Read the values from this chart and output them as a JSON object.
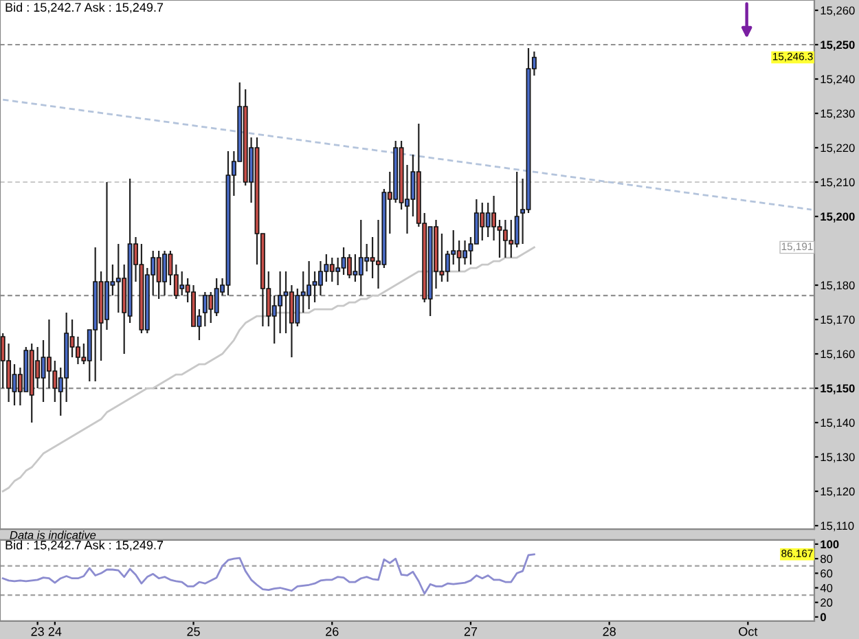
{
  "chart_data": [
    {
      "type": "candlestick",
      "title": "Bid : 15,242.7 Ask : 15,249.7",
      "categories": [
        null,
        null,
        null,
        null,
        null,
        null,
        null,
        null,
        null,
        null,
        null,
        null,
        null,
        null,
        null,
        null,
        null,
        null,
        null,
        null,
        null,
        null,
        null,
        null,
        null,
        null,
        null,
        null,
        null,
        null,
        null,
        null,
        null,
        null,
        null,
        null,
        null,
        null,
        null,
        null,
        null,
        null,
        null,
        null,
        null,
        null,
        null,
        null,
        null,
        null,
        null,
        null,
        null,
        null,
        null,
        null,
        null,
        null,
        null,
        null,
        null,
        null,
        null,
        null,
        null,
        null,
        null,
        null,
        null,
        null,
        null,
        null,
        null,
        null,
        null,
        null,
        null,
        null,
        null,
        null,
        null,
        null,
        null,
        null,
        null,
        null,
        null,
        null,
        null,
        null,
        null,
        null,
        null,
        null,
        null,
        null,
        null,
        null,
        null,
        null,
        null,
        null,
        null,
        null,
        null,
        null,
        null,
        null,
        null,
        null,
        null,
        null,
        null,
        null,
        null,
        null,
        null,
        null,
        null,
        null,
        null,
        null,
        null,
        null,
        null,
        null,
        null,
        null,
        null,
        null,
        null,
        null,
        null,
        null,
        null,
        null,
        null,
        null,
        null,
        null,
        null
      ],
      "ohlc": [
        [
          15165,
          15166,
          15150,
          15158
        ],
        [
          15158,
          15163,
          15146,
          15150
        ],
        [
          15149,
          15157,
          15145,
          15154
        ],
        [
          15154,
          15156,
          15145,
          15149
        ],
        [
          15149,
          15162,
          15149,
          15161
        ],
        [
          15161,
          15163,
          15140,
          15148
        ],
        [
          15158,
          15162,
          15150,
          15153
        ],
        [
          15153,
          15164,
          15146,
          15159
        ],
        [
          15159,
          15170,
          15150,
          15155
        ],
        [
          15155,
          15158,
          15146,
          15150
        ],
        [
          15149,
          15156,
          15142,
          15153
        ],
        [
          15153,
          15172,
          15146,
          15166
        ],
        [
          15165,
          15170,
          15159,
          15162
        ],
        [
          15162,
          15165,
          15157,
          15159
        ],
        [
          15159,
          15163,
          15157,
          15158
        ],
        [
          15158,
          15167,
          15152,
          15167
        ],
        [
          15167,
          15191,
          15152,
          15181
        ],
        [
          15181,
          15184,
          15158,
          15169
        ],
        [
          15170,
          15210,
          15167,
          15181
        ],
        [
          15180,
          15186,
          15177,
          15181
        ],
        [
          15181,
          15192,
          15172,
          15182
        ],
        [
          15182,
          15186,
          15160,
          15172
        ],
        [
          15171,
          15211,
          15169,
          15192
        ],
        [
          15192,
          15194,
          15181,
          15186
        ],
        [
          15186,
          15192,
          15166,
          15167
        ],
        [
          15167,
          15185,
          15166,
          15183
        ],
        [
          15183,
          15190,
          15177,
          15188
        ],
        [
          15188,
          15190,
          15176,
          15181
        ],
        [
          15181,
          15190,
          15177,
          15189
        ],
        [
          15189,
          15190,
          15180,
          15183
        ],
        [
          15183,
          15186,
          15176,
          15177
        ],
        [
          15179,
          15184,
          15177,
          15180
        ],
        [
          15180,
          15182,
          15175,
          15178
        ],
        [
          15178,
          15180,
          15168,
          15168
        ],
        [
          15168,
          15173,
          15164,
          15171
        ],
        [
          15172,
          15178,
          15168,
          15177
        ],
        [
          15177,
          15178,
          15169,
          15173
        ],
        [
          15172,
          15182,
          15171,
          15179
        ],
        [
          15178,
          15182,
          15177,
          15180
        ],
        [
          15180,
          15219,
          15177,
          15212
        ],
        [
          15212,
          15219,
          15206,
          15216
        ],
        [
          15216,
          15239,
          15216,
          15232
        ],
        [
          15232,
          15237,
          15209,
          15210
        ],
        [
          15210,
          15223,
          15204,
          15220
        ],
        [
          15220,
          15223,
          15186,
          15195
        ],
        [
          15195,
          15195,
          15168,
          15179
        ],
        [
          15179,
          15184,
          15168,
          15171
        ],
        [
          15171,
          15177,
          15163,
          15174
        ],
        [
          15174,
          15184,
          15166,
          15177
        ],
        [
          15177,
          15184,
          15166,
          15178
        ],
        [
          15178,
          15180,
          15159,
          15169
        ],
        [
          15169,
          15179,
          15168,
          15177
        ],
        [
          15177,
          15184,
          15172,
          15178
        ],
        [
          15177,
          15187,
          15173,
          15180
        ],
        [
          15180,
          15184,
          15175,
          15181
        ],
        [
          15180,
          15187,
          15177,
          15184
        ],
        [
          15184,
          15189,
          15181,
          15186
        ],
        [
          15186,
          15188,
          15181,
          15184
        ],
        [
          15184,
          15188,
          15180,
          15185
        ],
        [
          15185,
          15191,
          15183,
          15188
        ],
        [
          15188,
          15189,
          15182,
          15183
        ],
        [
          15183,
          15189,
          15181,
          15184
        ],
        [
          15183,
          15199,
          15177,
          15188
        ],
        [
          15187,
          15192,
          15184,
          15188
        ],
        [
          15188,
          15194,
          15182,
          15187
        ],
        [
          15187,
          15199,
          15179,
          15186
        ],
        [
          15186,
          15208,
          15185,
          15207
        ],
        [
          15207,
          15213,
          15195,
          15205
        ],
        [
          15205,
          15222,
          15204,
          15220
        ],
        [
          15220,
          15222,
          15202,
          15204
        ],
        [
          15203,
          15215,
          15195,
          15205
        ],
        [
          15205,
          15218,
          15200,
          15213
        ],
        [
          15213,
          15227,
          15197,
          15198
        ],
        [
          15198,
          15201,
          15175,
          15176
        ],
        [
          15176,
          15197,
          15171,
          15197
        ],
        [
          15197,
          15199,
          15179,
          15184
        ],
        [
          15184,
          15195,
          15181,
          15183
        ],
        [
          15184,
          15190,
          15181,
          15189
        ],
        [
          15189,
          15196,
          15186,
          15190
        ],
        [
          15190,
          15193,
          15184,
          15188
        ],
        [
          15188,
          15193,
          15186,
          15190
        ],
        [
          15190,
          15194,
          15186,
          15192
        ],
        [
          15192,
          15205,
          15192,
          15201
        ],
        [
          15201,
          15204,
          15193,
          15197
        ],
        [
          15197,
          15204,
          15194,
          15201
        ],
        [
          15201,
          15206,
          15193,
          15197
        ],
        [
          15197,
          15199,
          15188,
          15196
        ],
        [
          15196,
          15199,
          15188,
          15193
        ],
        [
          15193,
          15199,
          15188,
          15192
        ],
        [
          15192,
          15213,
          15191,
          15200
        ],
        [
          15201,
          15211,
          15192,
          15202
        ],
        [
          15202,
          15249,
          15201,
          15243
        ],
        [
          15243,
          15248,
          15241,
          15246.3
        ],
        null,
        null,
        null,
        null,
        null,
        null,
        null,
        null,
        null,
        null,
        null,
        null,
        null,
        null,
        null,
        null,
        null,
        null,
        null,
        null,
        null,
        null,
        null,
        null,
        null,
        null,
        null,
        null,
        null,
        null,
        null,
        null,
        null,
        null,
        null,
        null,
        null,
        null,
        null,
        null,
        null,
        null,
        null,
        null,
        null,
        null,
        null,
        null
      ],
      "colors": [
        "#c8504a",
        "#c8504a",
        "#4a6cc8",
        "#c8504a",
        "#4a6cc8",
        "#c8504a",
        "#c8504a",
        "#4a6cc8",
        "#c8504a",
        "#c8504a",
        "#4a6cc8",
        "#4a6cc8",
        "#c8504a",
        "#c8504a",
        "#c8504a",
        "#4a6cc8",
        "#4a6cc8",
        "#c8504a",
        "#4a6cc8",
        "#4a6cc8",
        "#4a6cc8",
        "#c8504a",
        "#4a6cc8",
        "#c8504a",
        "#c8504a",
        "#4a6cc8",
        "#4a6cc8",
        "#c8504a",
        "#4a6cc8",
        "#c8504a",
        "#c8504a",
        "#4a6cc8",
        "#c8504a",
        "#c8504a",
        "#4a6cc8",
        "#4a6cc8",
        "#c8504a",
        "#4a6cc8",
        "#4a6cc8",
        "#4a6cc8",
        "#4a6cc8",
        "#4a6cc8",
        "#c8504a",
        "#4a6cc8",
        "#c8504a",
        "#c8504a",
        "#c8504a",
        "#4a6cc8",
        "#4a6cc8",
        "#4a6cc8",
        "#c8504a",
        "#4a6cc8",
        "#4a6cc8",
        "#4a6cc8",
        "#4a6cc8",
        "#4a6cc8",
        "#4a6cc8",
        "#c8504a",
        "#4a6cc8",
        "#4a6cc8",
        "#c8504a",
        "#4a6cc8",
        "#4a6cc8",
        "#4a6cc8",
        "#c8504a",
        "#c8504a",
        "#4a6cc8",
        "#c8504a",
        "#4a6cc8",
        "#c8504a",
        "#4a6cc8",
        "#4a6cc8",
        "#c8504a",
        "#c8504a",
        "#4a6cc8",
        "#c8504a",
        "#c8504a",
        "#4a6cc8",
        "#4a6cc8",
        "#c8504a",
        "#4a6cc8",
        "#4a6cc8",
        "#4a6cc8",
        "#c8504a",
        "#4a6cc8",
        "#c8504a",
        "#c8504a",
        "#c8504a",
        "#c8504a",
        "#4a6cc8",
        "#4a6cc8",
        "#4a6cc8",
        "#4a6cc8",
        null,
        null,
        null,
        null,
        null,
        null,
        null,
        null,
        null,
        null,
        null,
        null,
        null,
        null,
        null,
        null,
        null,
        null,
        null,
        null,
        null,
        null,
        null,
        null,
        null,
        null,
        null,
        null,
        null,
        null,
        null,
        null,
        null,
        null,
        null,
        null,
        null,
        null,
        null,
        null,
        null,
        null,
        null,
        null,
        null,
        null,
        null,
        null
      ],
      "series": [
        {
          "type": "line",
          "color": "#c8c8c8",
          "values": [
            15120,
            15121,
            15123,
            15124,
            15126,
            15127,
            15129,
            15131,
            15132,
            15133,
            15134,
            15135,
            15136,
            15137,
            15138,
            15139,
            15140,
            15141,
            15143,
            15144,
            15145,
            15146,
            15147,
            15148,
            15149,
            15150,
            15150,
            15151,
            15152,
            15153,
            15154,
            15154,
            15155,
            15156,
            15157,
            15157,
            15158,
            15159,
            15160,
            15162,
            15164,
            15167,
            15169,
            15170,
            15171,
            15171,
            15171,
            15172,
            15172,
            15172,
            15172,
            15172,
            15172,
            15172,
            15173,
            15173,
            15173,
            15173,
            15174,
            15174,
            15175,
            15175,
            15176,
            15176,
            15177,
            15177,
            15178,
            15179,
            15180,
            15181,
            15182,
            15183,
            15184,
            15184,
            15184,
            15184,
            15184,
            15184,
            15184,
            15184,
            15184,
            15185,
            15185,
            15186,
            15186,
            15187,
            15187,
            15188,
            15188,
            15188,
            15189,
            15190,
            15191,
            null,
            null,
            null,
            null,
            null,
            null,
            null,
            null,
            null,
            null,
            null,
            null,
            null,
            null,
            null,
            null,
            null,
            null,
            null,
            null,
            null,
            null,
            null,
            null,
            null,
            null,
            null,
            null,
            null,
            null,
            null,
            null,
            null,
            null,
            null,
            null,
            null,
            null,
            null,
            null,
            null,
            null,
            null,
            null,
            null,
            null,
            null,
            null
          ]
        },
        {
          "type": "line",
          "color": "#b4c4dc",
          "line_style": "dashed",
          "values": [
            15234,
            null,
            null,
            null,
            null,
            null,
            null,
            null,
            null,
            null,
            null,
            null,
            null,
            null,
            null,
            null,
            null,
            null,
            null,
            null,
            null,
            null,
            null,
            null,
            null,
            null,
            null,
            null,
            null,
            null,
            null,
            null,
            null,
            null,
            null,
            null,
            null,
            null,
            null,
            null,
            null,
            null,
            null,
            null,
            null,
            null,
            null,
            null,
            null,
            null,
            null,
            null,
            null,
            null,
            null,
            null,
            null,
            null,
            null,
            null,
            null,
            null,
            null,
            null,
            null,
            null,
            null,
            null,
            null,
            null,
            null,
            null,
            null,
            null,
            null,
            null,
            null,
            null,
            null,
            null,
            null,
            null,
            null,
            null,
            null,
            null,
            null,
            null,
            null,
            null,
            null,
            null,
            null,
            null,
            null,
            null,
            null,
            null,
            null,
            null,
            null,
            null,
            null,
            null,
            null,
            null,
            null,
            null,
            null,
            null,
            null,
            null,
            null,
            null,
            null,
            null,
            null,
            null,
            null,
            null,
            null,
            null,
            null,
            null,
            null,
            null,
            null,
            null,
            null,
            null,
            null,
            null,
            null,
            null,
            null,
            null,
            null,
            null,
            null,
            null,
            15202
          ]
        }
      ],
      "ref_lines": [
        {
          "axis": "y",
          "value": 15250,
          "color": "#909090",
          "line_style": "dashed"
        },
        {
          "axis": "y",
          "value": 15210,
          "color": "#c8c8c8",
          "line_style": "dashed"
        },
        {
          "axis": "y",
          "value": 15177,
          "color": "#909090",
          "line_style": "dashed"
        },
        {
          "axis": "y",
          "value": 15150,
          "color": "#909090",
          "line_style": "dashed"
        }
      ],
      "annotations": [
        "Data is indicative",
        "15,246.3",
        {
          "text": "15,191",
          "y": 15191
        }
      ],
      "ylim": [
        15109,
        15263
      ],
      "yticks": [
        {
          "value": 15110,
          "label": "15,110"
        },
        {
          "value": 15120,
          "label": "15,120"
        },
        {
          "value": 15130,
          "label": "15,130"
        },
        {
          "value": 15140,
          "label": "15,140"
        },
        {
          "value": 15150,
          "label": "15,150"
        },
        {
          "value": 15160,
          "label": "15,160"
        },
        {
          "value": 15170,
          "label": "15,170"
        },
        {
          "value": 15180,
          "label": "15,180"
        },
        {
          "value": 15200,
          "label": "15,200"
        },
        {
          "value": 15210,
          "label": "15,210"
        },
        {
          "value": 15220,
          "label": "15,220"
        },
        {
          "value": 15230,
          "label": "15,230"
        },
        {
          "value": 15240,
          "label": "15,240"
        },
        {
          "value": 15250,
          "label": "15,250"
        },
        {
          "value": 15260,
          "label": "15,260"
        }
      ],
      "tick_labels": "y",
      "grid": false
    },
    {
      "type": "line",
      "title": "Bid : 15,242.7 Ask : 15,249.7",
      "color": "#8c8cd0",
      "categories": [
        null,
        null,
        null,
        null,
        null,
        null,
        "23",
        null,
        null,
        "24",
        null,
        null,
        null,
        null,
        null,
        null,
        null,
        null,
        null,
        null,
        null,
        null,
        null,
        null,
        null,
        null,
        null,
        null,
        null,
        null,
        null,
        null,
        null,
        "25",
        null,
        null,
        null,
        null,
        null,
        null,
        null,
        null,
        null,
        null,
        null,
        null,
        null,
        null,
        null,
        null,
        null,
        null,
        null,
        null,
        null,
        null,
        null,
        "26",
        null,
        null,
        null,
        null,
        null,
        null,
        null,
        null,
        null,
        null,
        null,
        null,
        null,
        null,
        null,
        null,
        null,
        null,
        null,
        null,
        null,
        null,
        null,
        "27",
        null,
        null,
        null,
        null,
        null,
        null,
        null,
        null,
        null,
        null,
        null,
        null,
        null,
        null,
        null,
        null,
        null,
        null,
        null,
        null,
        null,
        null,
        null,
        "28",
        null,
        null,
        null,
        null,
        null,
        null,
        null,
        null,
        null,
        null,
        null,
        null,
        null,
        null,
        null,
        null,
        null,
        null,
        null,
        null,
        null,
        null,
        null,
        "Oct",
        null,
        null,
        null,
        null,
        null,
        null,
        null,
        null,
        null,
        null,
        null
      ],
      "values": [
        53,
        50,
        49,
        50,
        49,
        50,
        51,
        54,
        53,
        47,
        53,
        56,
        53,
        53,
        56,
        67,
        57,
        60,
        65,
        65,
        64,
        55,
        66,
        58,
        46,
        55,
        59,
        53,
        55,
        51,
        49,
        48,
        42,
        42,
        48,
        46,
        50,
        54,
        70,
        78,
        80,
        81,
        63,
        51,
        44,
        38,
        37,
        39,
        40,
        38,
        36,
        42,
        43,
        44,
        46,
        50,
        51,
        51,
        55,
        54,
        48,
        48,
        53,
        55,
        52,
        51,
        79,
        74,
        80,
        58,
        57,
        62,
        49,
        32,
        45,
        42,
        42,
        46,
        45,
        46,
        47,
        50,
        57,
        53,
        57,
        51,
        51,
        48,
        48,
        60,
        63,
        85,
        86,
        null,
        null,
        null,
        null,
        null,
        null,
        null,
        null,
        null,
        null,
        null,
        null,
        null,
        null,
        null,
        null,
        null,
        null,
        null,
        null,
        null,
        null,
        null,
        null,
        null,
        null,
        null,
        null,
        null,
        null,
        null,
        null,
        null,
        null,
        null,
        null,
        null,
        null,
        null,
        null,
        null,
        null,
        null,
        null,
        null,
        null,
        null,
        null
      ],
      "ref_lines": [
        {
          "axis": "y",
          "value": 70,
          "color": "#a0a0a0",
          "line_style": "dashed"
        },
        {
          "axis": "y",
          "value": 30,
          "color": "#a0a0a0",
          "line_style": "dashed"
        }
      ],
      "annotations": [
        {
          "text": "86.167",
          "y": 86
        }
      ],
      "ylim": [
        -5.7,
        105.7
      ],
      "yticks": [
        0,
        20,
        40,
        60,
        80,
        100
      ],
      "grid": false
    }
  ]
}
